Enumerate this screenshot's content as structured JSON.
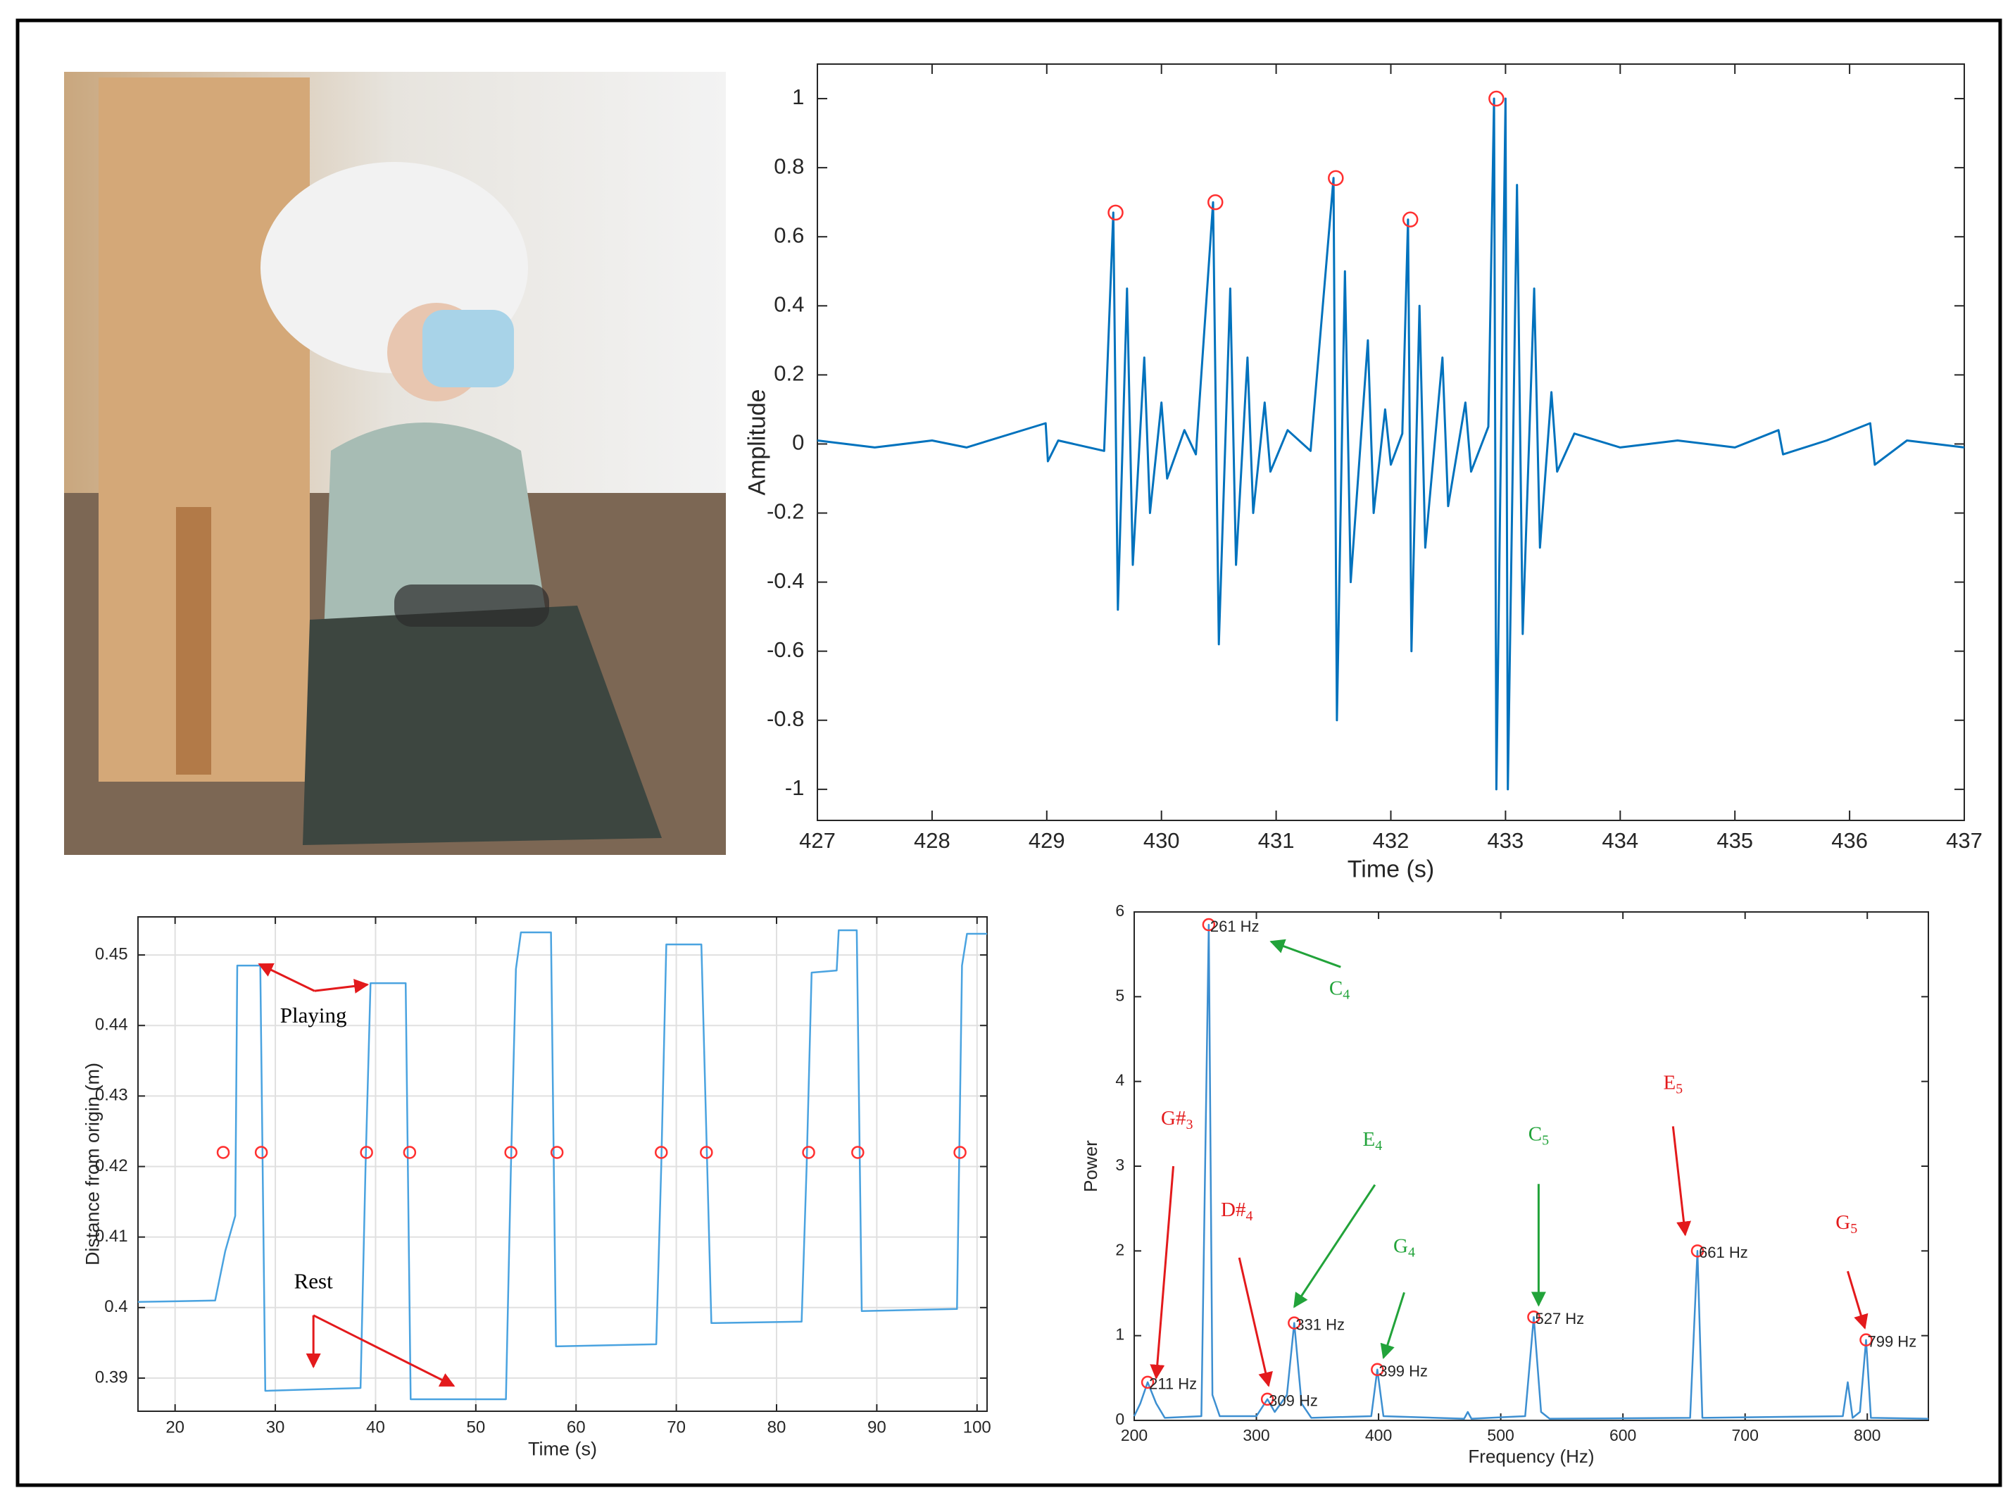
{
  "chart_data": [
    {
      "type": "line",
      "color": "#0072bd",
      "grid": false,
      "ylabel": "Amplitude",
      "xlabel": "Time (s)",
      "xlim": [
        427,
        437
      ],
      "xticks": [
        427,
        428,
        429,
        430,
        431,
        432,
        433,
        434,
        435,
        436,
        437
      ],
      "ylim": [
        -1.09,
        1.1
      ],
      "yticks": [
        -1,
        -0.8,
        -0.6,
        -0.4,
        -0.2,
        0,
        0.2,
        0.4,
        0.6,
        0.8,
        1
      ],
      "x": [
        427,
        427.5,
        428,
        428.3,
        428.99,
        429.01,
        429.1,
        429.5,
        429.58,
        429.62,
        429.7,
        429.75,
        429.85,
        429.9,
        430.0,
        430.05,
        430.2,
        430.3,
        430.45,
        430.5,
        430.6,
        430.65,
        430.75,
        430.8,
        430.9,
        430.95,
        431.1,
        431.3,
        431.5,
        431.53,
        431.6,
        431.65,
        431.8,
        431.85,
        431.95,
        432.0,
        432.1,
        432.15,
        432.18,
        432.25,
        432.3,
        432.45,
        432.5,
        432.65,
        432.7,
        432.85,
        432.9,
        432.92,
        433.0,
        433.02,
        433.1,
        433.15,
        433.25,
        433.3,
        433.4,
        433.45,
        433.6,
        434,
        434.5,
        435,
        435.38,
        435.42,
        435.8,
        436.18,
        436.22,
        436.5,
        437
      ],
      "values": [
        0.01,
        -0.01,
        0.01,
        -0.01,
        0.06,
        -0.05,
        0.01,
        -0.02,
        0.67,
        -0.48,
        0.45,
        -0.35,
        0.25,
        -0.2,
        0.12,
        -0.1,
        0.04,
        -0.03,
        0.7,
        -0.58,
        0.45,
        -0.35,
        0.25,
        -0.2,
        0.12,
        -0.08,
        0.04,
        -0.02,
        0.77,
        -0.8,
        0.5,
        -0.4,
        0.3,
        -0.2,
        0.1,
        -0.06,
        0.03,
        0.65,
        -0.6,
        0.4,
        -0.3,
        0.25,
        -0.18,
        0.12,
        -0.08,
        0.05,
        1.0,
        -1.0,
        1.0,
        -1.0,
        0.75,
        -0.55,
        0.45,
        -0.3,
        0.15,
        -0.08,
        0.03,
        -0.01,
        0.01,
        -0.01,
        0.04,
        -0.03,
        0.01,
        0.06,
        -0.06,
        0.01,
        -0.01
      ],
      "markers": {
        "color": "#ff3030",
        "x": [
          429.6,
          430.47,
          431.52,
          432.17,
          432.92
        ],
        "values": [
          0.67,
          0.7,
          0.77,
          0.65,
          1.0
        ]
      }
    },
    {
      "type": "line",
      "color": "#4aa3e0",
      "grid": true,
      "ylabel": "Distance from origin (m)",
      "xlabel": "Time (s)",
      "xlim": [
        16.3,
        101
      ],
      "xticks": [
        20,
        30,
        40,
        50,
        60,
        70,
        80,
        90,
        100
      ],
      "ylim": [
        0.3853,
        0.4554
      ],
      "yticks": [
        0.39,
        0.4,
        0.41,
        0.42,
        0.43,
        0.44,
        0.45
      ],
      "x": [
        16.3,
        24,
        25,
        26,
        26.2,
        28.5,
        29,
        36,
        38.5,
        39,
        39.5,
        43,
        43.5,
        53,
        53.5,
        54,
        54.5,
        57.5,
        58,
        68,
        68.5,
        69,
        72.5,
        73.5,
        82.5,
        83,
        83.5,
        86,
        86.2,
        88,
        88.5,
        98,
        98.5,
        99,
        101
      ],
      "values": [
        0.4008,
        0.401,
        0.408,
        0.413,
        0.4485,
        0.4485,
        0.3882,
        0.3885,
        0.3886,
        0.42,
        0.446,
        0.446,
        0.387,
        0.387,
        0.42,
        0.448,
        0.4532,
        0.4532,
        0.3945,
        0.3948,
        0.42,
        0.4515,
        0.4515,
        0.3978,
        0.398,
        0.42,
        0.4475,
        0.4478,
        0.4535,
        0.4535,
        0.3995,
        0.3998,
        0.4485,
        0.453,
        0.453
      ],
      "markers": {
        "color": "#ff3030",
        "x": [
          24.8,
          28.6,
          39.1,
          43.4,
          53.5,
          58.1,
          68.5,
          73,
          83.2,
          88.1,
          98.3
        ],
        "values": [
          0.422,
          0.422,
          0.422,
          0.422,
          0.422,
          0.422,
          0.422,
          0.422,
          0.422,
          0.422,
          0.422
        ]
      },
      "annotations": [
        {
          "text": "Playing",
          "color": "#000000"
        },
        {
          "text": "Rest",
          "color": "#000000"
        }
      ]
    },
    {
      "type": "line",
      "color": "#3d8fd1",
      "grid": false,
      "ylabel": "Power",
      "xlabel": "Frequency (Hz)",
      "xlim": [
        200,
        850
      ],
      "xticks": [
        200,
        300,
        400,
        500,
        600,
        700,
        800
      ],
      "ylim": [
        0,
        6
      ],
      "yticks": [
        0,
        1,
        2,
        3,
        4,
        5,
        6
      ],
      "x": [
        200,
        205,
        211,
        218,
        225,
        255,
        261,
        264,
        270,
        300,
        309,
        315,
        325,
        331,
        337,
        345,
        394,
        399,
        404,
        470,
        473,
        476,
        520,
        527,
        533,
        540,
        655,
        661,
        665,
        780,
        784,
        788,
        794,
        799,
        803,
        850
      ],
      "values": [
        0.05,
        0.2,
        0.45,
        0.2,
        0.03,
        0.05,
        5.85,
        0.3,
        0.05,
        0.05,
        0.25,
        0.1,
        0.3,
        1.15,
        0.2,
        0.03,
        0.05,
        0.6,
        0.05,
        0.02,
        0.1,
        0.02,
        0.05,
        1.22,
        0.1,
        0.02,
        0.03,
        2.0,
        0.03,
        0.05,
        0.45,
        0.03,
        0.1,
        0.95,
        0.03,
        0.02
      ],
      "markers": {
        "color": "#ff3030",
        "x": [
          211,
          261,
          309,
          331,
          399,
          527,
          661,
          799
        ],
        "values": [
          0.45,
          5.85,
          0.25,
          1.15,
          0.6,
          1.22,
          2.0,
          0.95
        ],
        "labels": [
          "211 Hz",
          "261 Hz",
          "309 Hz",
          "331 Hz",
          "399 Hz",
          "527 Hz",
          "661 Hz",
          "799 Hz"
        ]
      },
      "annotations": [
        {
          "text": "G#",
          "sub": "3",
          "color": "#e31a1c"
        },
        {
          "text": "C",
          "sub": "4",
          "color": "#22a33a"
        },
        {
          "text": "D#",
          "sub": "4",
          "color": "#e31a1c"
        },
        {
          "text": "E",
          "sub": "4",
          "color": "#22a33a"
        },
        {
          "text": "G",
          "sub": "4",
          "color": "#22a33a"
        },
        {
          "text": "C",
          "sub": "5",
          "color": "#22a33a"
        },
        {
          "text": "E",
          "sub": "5",
          "color": "#e31a1c"
        },
        {
          "text": "G",
          "sub": "5",
          "color": "#e31a1c"
        }
      ]
    }
  ]
}
